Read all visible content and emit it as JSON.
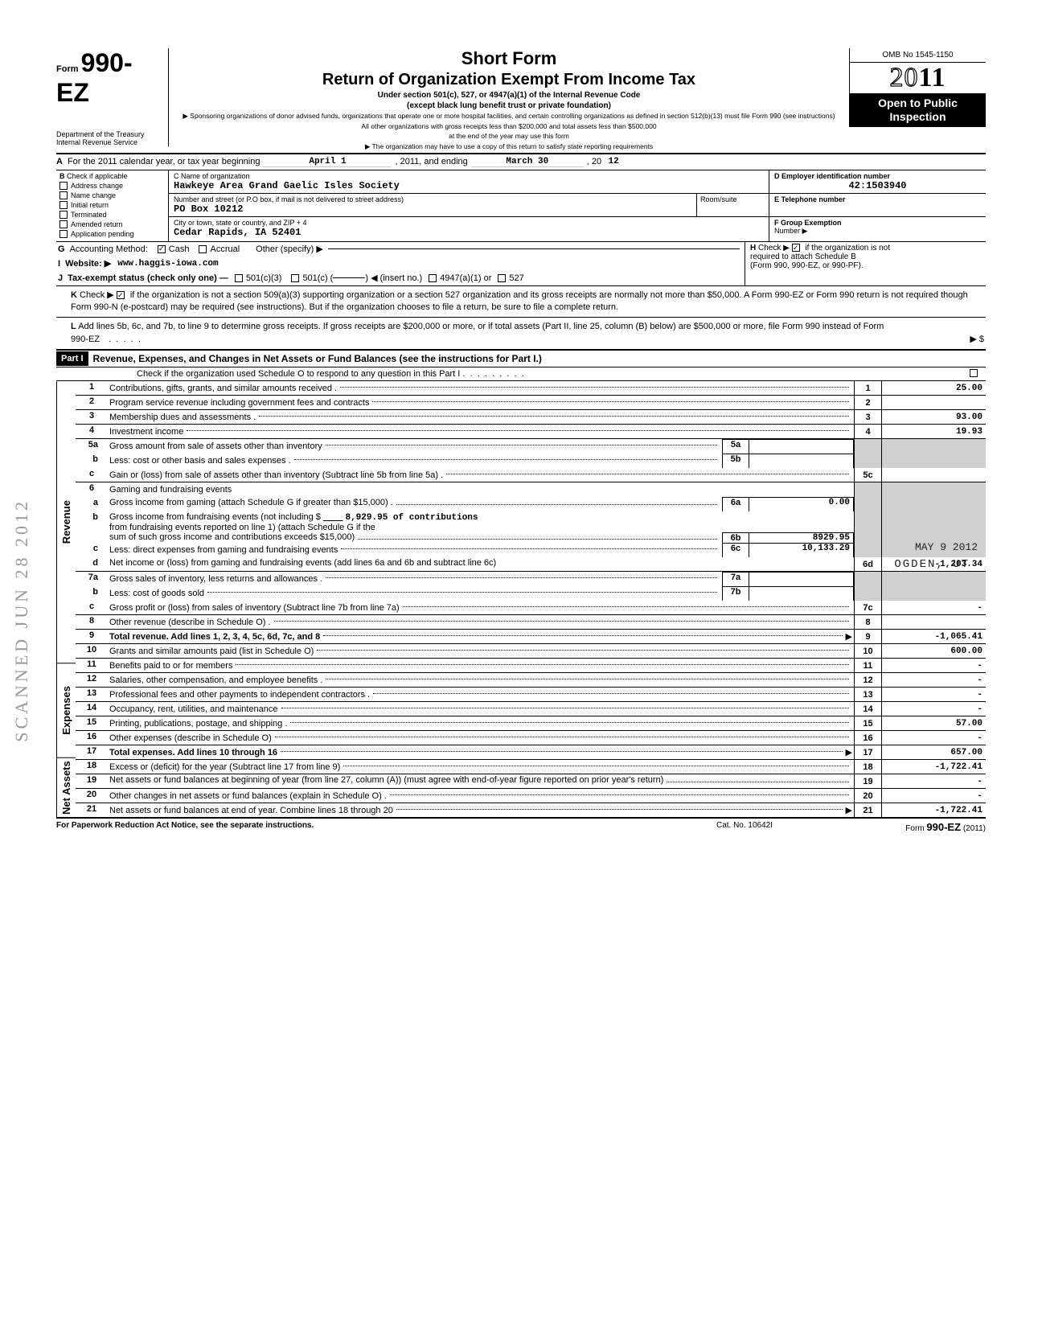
{
  "header": {
    "form_prefix": "Form",
    "form_number": "990-EZ",
    "dept1": "Department of the Treasury",
    "dept2": "Internal Revenue Service",
    "short_form": "Short Form",
    "title": "Return of Organization Exempt From Income Tax",
    "sub1": "Under section 501(c), 527, or 4947(a)(1) of the Internal Revenue Code",
    "sub2": "(except black lung benefit trust or private foundation)",
    "fine1": "▶ Sponsoring organizations of donor advised funds, organizations that operate one or more hospital facilities, and certain controlling organizations as defined in section 512(b)(13) must file Form 990 (see instructions)",
    "fine2": "All other organizations with gross receipts less than $200,000 and total assets less than $500,000",
    "fine3": "at the end of the year may use this form",
    "fine4": "▶ The organization may have to use a copy of this return to satisfy state reporting requirements",
    "omb": "OMB No 1545-1150",
    "year_prefix": "20",
    "year_suffix": "11",
    "open1": "Open to Public",
    "open2": "Inspection"
  },
  "rowA": {
    "label": "A",
    "text1": "For the 2011 calendar year, or tax year beginning",
    "begin": "April 1",
    "mid": ", 2011, and ending",
    "end": "March 30",
    "suffix": ", 20",
    "yr": "12"
  },
  "colB": {
    "label": "B",
    "hint": "Check if applicable",
    "items": [
      "Address change",
      "Name change",
      "Initial return",
      "Terminated",
      "Amended return",
      "Application pending"
    ]
  },
  "colC": {
    "name_lbl": "C  Name of organization",
    "name_val": "Hawkeye Area Grand Gaelic Isles Society",
    "addr_lbl": "Number and street (or P.O  box, if mail is not delivered to street address)",
    "room_lbl": "Room/suite",
    "addr_val": "PO Box 10212",
    "city_lbl": "City or town, state or country, and ZIP + 4",
    "city_val": "Cedar Rapids, IA 52401"
  },
  "colD": {
    "d_lbl": "D Employer identification number",
    "d_val": "42:1503940",
    "e_lbl": "E  Telephone number",
    "f_lbl": "F  Group Exemption",
    "f_lbl2": "Number  ▶"
  },
  "rowG": {
    "g": "G",
    "text": "Accounting Method:",
    "cash": "Cash",
    "accrual": "Accrual",
    "other": "Other (specify) ▶"
  },
  "rowH": {
    "h": "H",
    "text": "Check ▶",
    "tail": "if the organization is not",
    "tail2": "required to attach Schedule B",
    "tail3": "(Form 990, 990-EZ, or 990-PF)."
  },
  "rowI": {
    "i": "I",
    "text": "Website: ▶",
    "val": "www.haggis-iowa.com"
  },
  "rowJ": {
    "j": "J",
    "text": "Tax-exempt status (check only one) —",
    "a": "501(c)(3)",
    "b": "501(c) (",
    "c": ") ◀ (insert no.)",
    "d": "4947(a)(1) or",
    "e": "527"
  },
  "rowK": {
    "k": "K",
    "text": "Check ▶",
    "body": "if the organization is not a section 509(a)(3) supporting organization or a section 527 organization and its gross receipts are normally not more than $50,000. A Form 990-EZ or Form 990 return is not required though Form 990-N (e-postcard) may be required (see instructions). But if the organization chooses to file a return, be sure to file a complete return."
  },
  "rowL": {
    "l": "L",
    "body": "Add lines 5b, 6c, and 7b, to line 9 to determine gross receipts. If gross receipts are $200,000 or more, or if total assets (Part II, line 25, column (B) below) are $500,000 or more, file Form 990 instead of Form 990-EZ",
    "arrow": "▶  $"
  },
  "part1": {
    "bar": "Part I",
    "title": "Revenue, Expenses, and Changes in Net Assets or Fund Balances (see the instructions for Part I.)",
    "check": "Check if the organization used Schedule O to respond to any question in this Part I ."
  },
  "sides": {
    "rev": "Revenue",
    "exp": "Expenses",
    "na": "Net Assets"
  },
  "lines": {
    "l1": {
      "n": "1",
      "d": "Contributions, gifts, grants, and similar amounts received .",
      "b": "1",
      "v": "25.00"
    },
    "l2": {
      "n": "2",
      "d": "Program service revenue including government fees and contracts",
      "b": "2",
      "v": ""
    },
    "l3": {
      "n": "3",
      "d": "Membership dues and assessments .",
      "b": "3",
      "v": "93.00"
    },
    "l4": {
      "n": "4",
      "d": "Investment income",
      "b": "4",
      "v": "19.93"
    },
    "l5a": {
      "n": "5a",
      "d": "Gross amount from sale of assets other than inventory",
      "mb": "5a",
      "mv": ""
    },
    "l5b": {
      "n": "b",
      "d": "Less: cost or other basis and sales expenses .",
      "mb": "5b",
      "mv": ""
    },
    "l5c": {
      "n": "c",
      "d": "Gain or (loss) from sale of assets other than inventory (Subtract line 5b from line 5a) .",
      "b": "5c",
      "v": ""
    },
    "l6": {
      "n": "6",
      "d": "Gaming and fundraising events"
    },
    "l6a": {
      "n": "a",
      "d": "Gross income from gaming (attach Schedule G if greater than $15,000) .",
      "mb": "6a",
      "mv": "0.00"
    },
    "l6b": {
      "n": "b",
      "d1": "Gross income from fundraising events (not including  $",
      "amt": "8,929.95 of contributions",
      "d2": "from fundraising events reported on line 1) (attach Schedule G if the",
      "d3": "sum of such gross income and contributions exceeds $15,000)",
      "mb": "6b",
      "mv": "8929.95"
    },
    "l6c": {
      "n": "c",
      "d": "Less: direct expenses from gaming and fundraising events",
      "mb": "6c",
      "mv": "10,133.29",
      "stamp": "MAY 9 2012"
    },
    "l6d": {
      "n": "d",
      "d": "Net income or (loss) from gaming and fundraising events (add lines 6a and 6b and subtract line 6c)",
      "b": "6d",
      "v": "-1,203.34",
      "stamp": "OGDEN, UT"
    },
    "l7a": {
      "n": "7a",
      "d": "Gross sales of inventory, less returns and allowances .",
      "mb": "7a",
      "mv": ""
    },
    "l7b": {
      "n": "b",
      "d": "Less: cost of goods sold",
      "mb": "7b",
      "mv": ""
    },
    "l7c": {
      "n": "c",
      "d": "Gross profit or (loss) from sales of inventory (Subtract line 7b from line 7a)",
      "b": "7c",
      "v": "-"
    },
    "l8": {
      "n": "8",
      "d": "Other revenue (describe in Schedule O) .",
      "b": "8",
      "v": ""
    },
    "l9": {
      "n": "9",
      "d": "Total revenue. Add lines 1, 2, 3, 4, 5c, 6d, 7c, and 8",
      "b": "9",
      "v": "-1,065.41",
      "bold": true
    },
    "l10": {
      "n": "10",
      "d": "Grants and similar amounts paid (list in Schedule O)",
      "b": "10",
      "v": "600.00"
    },
    "l11": {
      "n": "11",
      "d": "Benefits paid to or for members",
      "b": "11",
      "v": "-"
    },
    "l12": {
      "n": "12",
      "d": "Salaries, other compensation, and employee benefits .",
      "b": "12",
      "v": "-"
    },
    "l13": {
      "n": "13",
      "d": "Professional fees and other payments to independent contractors .",
      "b": "13",
      "v": "-"
    },
    "l14": {
      "n": "14",
      "d": "Occupancy, rent, utilities, and maintenance",
      "b": "14",
      "v": "-"
    },
    "l15": {
      "n": "15",
      "d": "Printing, publications, postage, and shipping .",
      "b": "15",
      "v": "57.00"
    },
    "l16": {
      "n": "16",
      "d": "Other expenses (describe in Schedule O)",
      "b": "16",
      "v": "-"
    },
    "l17": {
      "n": "17",
      "d": "Total expenses. Add lines 10 through 16",
      "b": "17",
      "v": "657.00",
      "bold": true
    },
    "l18": {
      "n": "18",
      "d": "Excess or (deficit) for the year (Subtract line 17 from line 9)",
      "b": "18",
      "v": "-1,722.41"
    },
    "l19": {
      "n": "19",
      "d": "Net assets or fund balances at beginning of year (from line 27, column (A)) (must agree with end-of-year figure reported on prior year's return)",
      "b": "19",
      "v": "-"
    },
    "l20": {
      "n": "20",
      "d": "Other changes in net assets or fund balances (explain in Schedule O) .",
      "b": "20",
      "v": "-"
    },
    "l21": {
      "n": "21",
      "d": "Net assets or fund balances at end of year. Combine lines 18 through 20",
      "b": "21",
      "v": "-1,722.41"
    }
  },
  "footer": {
    "left": "For Paperwork Reduction Act Notice, see the separate instructions.",
    "mid": "Cat. No. 10642I",
    "right": "Form 990-EZ (2011)"
  },
  "vert_stamp": "SCANNED JUN 28 2012"
}
